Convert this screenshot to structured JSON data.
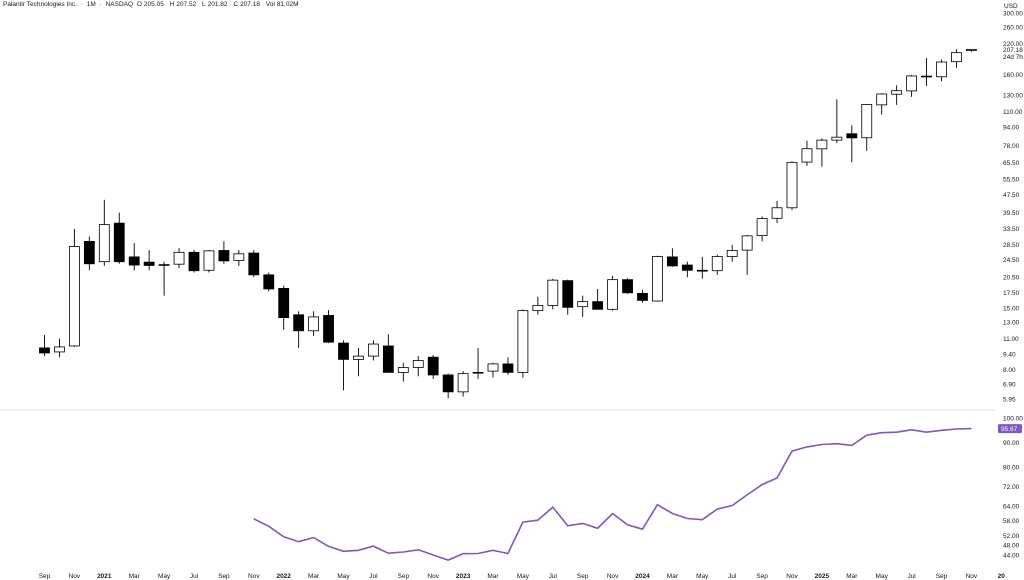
{
  "header": {
    "symbol": "Palantir Technologies Inc.",
    "interval": "1M",
    "exchange": "NASDAQ",
    "open_label": "O",
    "open": "205.05",
    "high_label": "H",
    "high": "207.52",
    "low_label": "L",
    "low": "201.82",
    "close_label": "C",
    "close": "207.18",
    "vol_label": "Vol",
    "volume": "81.02M"
  },
  "colors": {
    "up_fill": "#ffffff",
    "down_fill": "#000000",
    "candle_stroke": "#000000",
    "rsi_line": "#7e57c2"
  },
  "chart_data": {
    "type": "candlestick",
    "currency": "USD",
    "price_scale": "log",
    "ylim": [
      5.6,
      300
    ],
    "price_ticks": [
      "300.00",
      "260.00",
      "220.00",
      "160.00",
      "130.00",
      "110.00",
      "94.00",
      "78.00",
      "65.50",
      "55.50",
      "47.50",
      "39.50",
      "33.50",
      "28.50",
      "24.50",
      "20.50",
      "17.50",
      "15.00",
      "13.00",
      "11.00",
      "9.40",
      "8.00",
      "6.90",
      "5.95"
    ],
    "last_price_label": "207.18",
    "countdown_label": "24d 7h",
    "x_labels": [
      "Sep",
      "Nov",
      "2021",
      "Mar",
      "May",
      "Jul",
      "Sep",
      "Nov",
      "2022",
      "Mar",
      "May",
      "Jul",
      "Sep",
      "Nov",
      "2023",
      "Mar",
      "May",
      "Jul",
      "Sep",
      "Nov",
      "2024",
      "Mar",
      "May",
      "Jul",
      "Sep",
      "Nov",
      "2025",
      "Mar",
      "May",
      "Jul",
      "Sep",
      "Nov",
      "20"
    ],
    "year_labels": [
      "2021",
      "2022",
      "2023",
      "2024",
      "2025",
      "20"
    ],
    "candles": [
      {
        "date": "2020-09",
        "o": 10.0,
        "h": 11.4,
        "l": 9.2,
        "c": 9.5
      },
      {
        "date": "2020-10",
        "o": 9.6,
        "h": 11.0,
        "l": 9.1,
        "c": 10.1
      },
      {
        "date": "2020-11",
        "o": 10.2,
        "h": 33.5,
        "l": 10.1,
        "c": 28.0
      },
      {
        "date": "2020-12",
        "o": 29.5,
        "h": 31.0,
        "l": 22.0,
        "c": 23.5
      },
      {
        "date": "2021-01",
        "o": 24.0,
        "h": 45.0,
        "l": 23.0,
        "c": 35.0
      },
      {
        "date": "2021-02",
        "o": 35.5,
        "h": 39.5,
        "l": 23.5,
        "c": 24.0
      },
      {
        "date": "2021-03",
        "o": 25.2,
        "h": 29.0,
        "l": 22.0,
        "c": 23.2
      },
      {
        "date": "2021-04",
        "o": 23.9,
        "h": 27.0,
        "l": 22.0,
        "c": 23.1
      },
      {
        "date": "2021-05",
        "o": 23.2,
        "h": 24.0,
        "l": 17.0,
        "c": 23.3
      },
      {
        "date": "2021-06",
        "o": 23.4,
        "h": 27.5,
        "l": 22.5,
        "c": 26.4
      },
      {
        "date": "2021-07",
        "o": 26.4,
        "h": 27.0,
        "l": 21.5,
        "c": 21.9
      },
      {
        "date": "2021-08",
        "o": 22.0,
        "h": 27.0,
        "l": 21.5,
        "c": 26.8
      },
      {
        "date": "2021-09",
        "o": 26.9,
        "h": 29.5,
        "l": 23.5,
        "c": 24.2
      },
      {
        "date": "2021-10",
        "o": 24.3,
        "h": 27.0,
        "l": 23.0,
        "c": 26.0
      },
      {
        "date": "2021-11",
        "o": 26.2,
        "h": 27.0,
        "l": 20.5,
        "c": 21.0
      },
      {
        "date": "2021-12",
        "o": 21.0,
        "h": 21.5,
        "l": 17.8,
        "c": 18.2
      },
      {
        "date": "2022-01",
        "o": 18.3,
        "h": 18.8,
        "l": 12.0,
        "c": 13.6
      },
      {
        "date": "2022-02",
        "o": 14.0,
        "h": 14.5,
        "l": 10.0,
        "c": 11.9
      },
      {
        "date": "2022-03",
        "o": 11.9,
        "h": 14.5,
        "l": 11.3,
        "c": 13.7
      },
      {
        "date": "2022-04",
        "o": 13.9,
        "h": 14.7,
        "l": 10.5,
        "c": 10.6
      },
      {
        "date": "2022-05",
        "o": 10.5,
        "h": 10.8,
        "l": 6.5,
        "c": 8.9
      },
      {
        "date": "2022-06",
        "o": 8.9,
        "h": 10.0,
        "l": 7.5,
        "c": 9.2
      },
      {
        "date": "2022-07",
        "o": 9.2,
        "h": 10.8,
        "l": 8.8,
        "c": 10.4
      },
      {
        "date": "2022-08",
        "o": 10.2,
        "h": 11.5,
        "l": 7.8,
        "c": 7.8
      },
      {
        "date": "2022-09",
        "o": 7.8,
        "h": 8.6,
        "l": 7.1,
        "c": 8.2
      },
      {
        "date": "2022-10",
        "o": 8.2,
        "h": 9.2,
        "l": 7.5,
        "c": 8.8
      },
      {
        "date": "2022-11",
        "o": 9.1,
        "h": 9.3,
        "l": 7.3,
        "c": 7.6
      },
      {
        "date": "2022-12",
        "o": 7.6,
        "h": 7.7,
        "l": 6.0,
        "c": 6.4
      },
      {
        "date": "2023-01",
        "o": 6.4,
        "h": 7.9,
        "l": 6.1,
        "c": 7.7
      },
      {
        "date": "2023-02",
        "o": 7.8,
        "h": 10.0,
        "l": 7.3,
        "c": 7.8
      },
      {
        "date": "2023-03",
        "o": 7.9,
        "h": 8.6,
        "l": 7.4,
        "c": 8.5
      },
      {
        "date": "2023-04",
        "o": 8.5,
        "h": 9.1,
        "l": 7.6,
        "c": 7.8
      },
      {
        "date": "2023-05",
        "o": 7.8,
        "h": 14.8,
        "l": 7.4,
        "c": 14.6
      },
      {
        "date": "2023-06",
        "o": 14.6,
        "h": 16.8,
        "l": 14.0,
        "c": 15.4
      },
      {
        "date": "2023-07",
        "o": 15.4,
        "h": 20.2,
        "l": 14.8,
        "c": 19.9
      },
      {
        "date": "2023-08",
        "o": 19.8,
        "h": 20.0,
        "l": 14.0,
        "c": 15.1
      },
      {
        "date": "2023-09",
        "o": 15.2,
        "h": 17.0,
        "l": 13.7,
        "c": 16.0
      },
      {
        "date": "2023-10",
        "o": 16.0,
        "h": 18.2,
        "l": 14.8,
        "c": 14.8
      },
      {
        "date": "2023-11",
        "o": 14.8,
        "h": 20.8,
        "l": 14.6,
        "c": 20.0
      },
      {
        "date": "2023-12",
        "o": 20.0,
        "h": 20.3,
        "l": 17.3,
        "c": 17.5
      },
      {
        "date": "2024-01",
        "o": 17.4,
        "h": 18.0,
        "l": 15.8,
        "c": 16.2
      },
      {
        "date": "2024-02",
        "o": 16.1,
        "h": 25.5,
        "l": 16.0,
        "c": 25.3
      },
      {
        "date": "2024-03",
        "o": 25.2,
        "h": 27.5,
        "l": 22.8,
        "c": 23.0
      },
      {
        "date": "2024-04",
        "o": 23.2,
        "h": 24.0,
        "l": 20.5,
        "c": 22.0
      },
      {
        "date": "2024-05",
        "o": 22.0,
        "h": 25.2,
        "l": 20.2,
        "c": 21.8
      },
      {
        "date": "2024-06",
        "o": 21.9,
        "h": 25.8,
        "l": 21.0,
        "c": 25.3
      },
      {
        "date": "2024-07",
        "o": 25.3,
        "h": 28.5,
        "l": 24.0,
        "c": 26.9
      },
      {
        "date": "2024-08",
        "o": 27.0,
        "h": 31.5,
        "l": 21.0,
        "c": 31.2
      },
      {
        "date": "2024-09",
        "o": 31.3,
        "h": 38.0,
        "l": 29.5,
        "c": 37.2
      },
      {
        "date": "2024-10",
        "o": 37.3,
        "h": 44.5,
        "l": 35.5,
        "c": 41.5
      },
      {
        "date": "2024-11",
        "o": 41.5,
        "h": 66.5,
        "l": 40.5,
        "c": 65.8
      },
      {
        "date": "2024-12",
        "o": 66.0,
        "h": 82.0,
        "l": 63.5,
        "c": 75.6
      },
      {
        "date": "2025-01",
        "o": 75.5,
        "h": 84.0,
        "l": 63.0,
        "c": 82.5
      },
      {
        "date": "2025-02",
        "o": 82.5,
        "h": 125.0,
        "l": 80.0,
        "c": 85.0
      },
      {
        "date": "2025-03",
        "o": 88.0,
        "h": 96.0,
        "l": 66.0,
        "c": 84.4
      },
      {
        "date": "2025-04",
        "o": 84.5,
        "h": 119.0,
        "l": 74.0,
        "c": 118.5
      },
      {
        "date": "2025-05",
        "o": 118.0,
        "h": 133.0,
        "l": 107.0,
        "c": 131.8
      },
      {
        "date": "2025-06",
        "o": 131.5,
        "h": 144.0,
        "l": 118.0,
        "c": 136.3
      },
      {
        "date": "2025-07",
        "o": 136.0,
        "h": 160.0,
        "l": 128.0,
        "c": 158.3
      },
      {
        "date": "2025-08",
        "o": 158.0,
        "h": 190.0,
        "l": 143.0,
        "c": 156.7
      },
      {
        "date": "2025-09",
        "o": 157.0,
        "h": 187.0,
        "l": 150.0,
        "c": 182.4
      },
      {
        "date": "2025-10",
        "o": 183.0,
        "h": 207.5,
        "l": 172.0,
        "c": 200.5
      },
      {
        "date": "2025-11",
        "o": 205.05,
        "h": 207.52,
        "l": 201.82,
        "c": 207.18
      }
    ],
    "rsi": {
      "ylim": [
        40,
        100
      ],
      "ticks": [
        "100.00",
        "90.00",
        "80.00",
        "72.00",
        "64.00",
        "58.00",
        "52.00",
        "48.00",
        "44.00"
      ],
      "current_label": "95.67",
      "values": [
        null,
        null,
        null,
        null,
        null,
        null,
        null,
        null,
        null,
        null,
        null,
        null,
        null,
        null,
        58.8,
        55.8,
        51.5,
        49.5,
        51.2,
        47.6,
        45.6,
        46.0,
        47.7,
        44.8,
        45.3,
        46.2,
        44.1,
        42.0,
        44.6,
        44.7,
        46.0,
        44.7,
        57.5,
        58.3,
        63.6,
        56.0,
        57.0,
        55.0,
        61.0,
        56.4,
        54.6,
        64.6,
        61.0,
        59.0,
        58.5,
        62.8,
        64.3,
        68.6,
        72.8,
        75.5,
        86.5,
        88.2,
        89.2,
        89.5,
        88.8,
        93.0,
        94.0,
        94.2,
        95.2,
        94.2,
        95.0,
        95.5,
        95.67
      ]
    }
  }
}
